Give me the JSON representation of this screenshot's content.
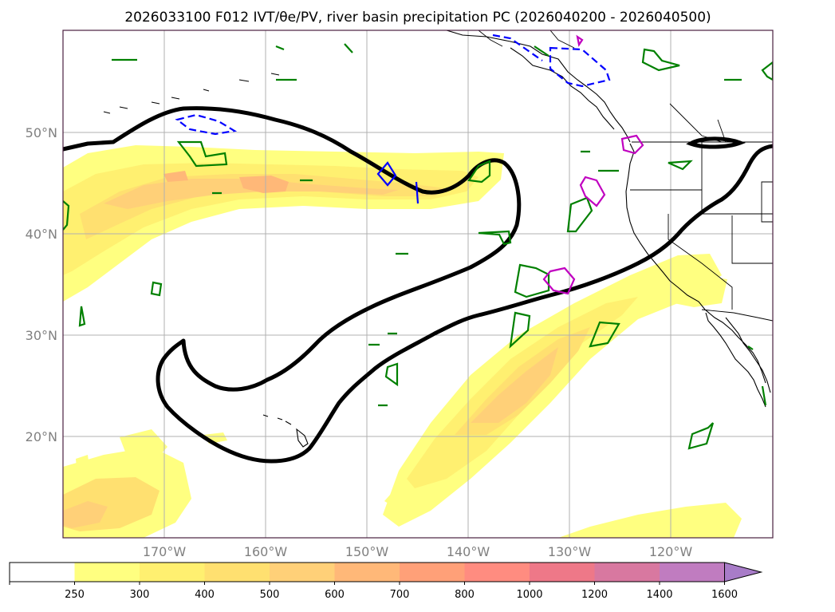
{
  "title": "2026033100 F012 IVT/θe/PV, river basin precipitation PC (2026040200 - 2026040500)",
  "map": {
    "lat_labels": [
      "50°N",
      "40°N",
      "30°N",
      "20°N"
    ],
    "lon_labels": [
      "170°W",
      "160°W",
      "150°W",
      "140°W",
      "130°W",
      "120°W"
    ],
    "lat_range": [
      10,
      60
    ],
    "lon_range": [
      -180,
      -110
    ]
  },
  "colorbar": {
    "levels": [
      "250",
      "300",
      "400",
      "500",
      "600",
      "700",
      "800",
      "1000",
      "1200",
      "1400",
      "1600"
    ],
    "colors": [
      "#ffffff",
      "#ffff80",
      "#fff070",
      "#ffe070",
      "#ffd078",
      "#ffb878",
      "#ffa078",
      "#ff8c80",
      "#ee7888",
      "#d878a0",
      "#c07cc0",
      "#a87cc8"
    ],
    "extend": "max"
  },
  "colors": {
    "ivt_low": "#ffff80",
    "ivt_mid": "#ffd47a",
    "ivt_high": "#ffb478",
    "pv_contour": "#000000",
    "theta_e_contour": "#008000",
    "blue_contour": "#0000ff",
    "magenta_contour": "#c000c0"
  }
}
